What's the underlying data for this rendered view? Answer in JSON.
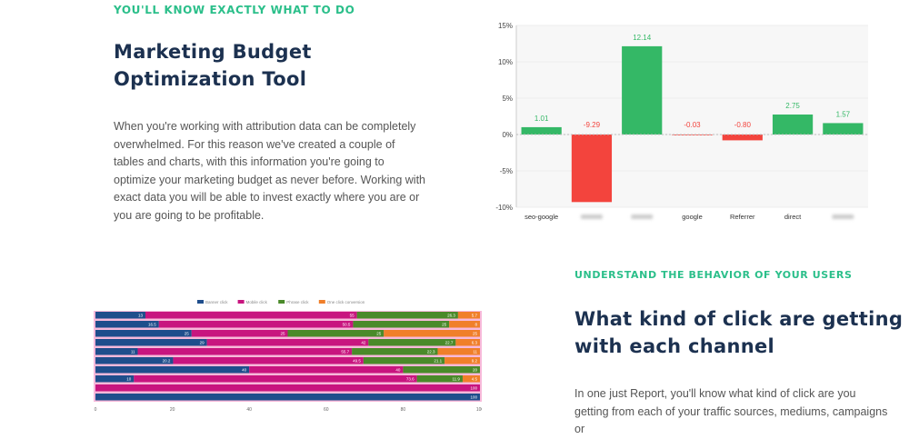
{
  "section1": {
    "eyebrow": "YOU'LL KNOW EXACTLY WHAT TO DO",
    "title_line1": "Marketing Budget",
    "title_line2": "Optimization Tool",
    "paragraph": "When you're working with attribution data can be completely overwhelmed. For this reason we've created a couple of tables and charts, with this information you're going to optimize your marketing budget as never before. Working with exact data you will be able to invest exactly where you are or you are going to be profitable."
  },
  "section2": {
    "eyebrow": "UNDERSTAND THE BEHAVIOR OF YOUR USERS",
    "title_line1": "What kind of click are getting",
    "title_line2": "with each channel",
    "paragraph": "In one just Report, you'll know what kind of click are you getting from each of your traffic sources, mediums, campaigns or"
  },
  "chart_data": [
    {
      "type": "bar",
      "categories": [
        "seo-google",
        "",
        "",
        "google",
        "Referrer",
        "direct",
        ""
      ],
      "values": [
        1.01,
        -9.29,
        12.14,
        -0.03,
        -0.8,
        2.75,
        1.57
      ],
      "data_labels": [
        "1.01",
        "-9.29",
        "12.14",
        "-0.03",
        "-0.80",
        "2.75",
        "1.57"
      ],
      "yticks": [
        "15%",
        "10%",
        "5%",
        "0%",
        "-5%",
        "-10%"
      ],
      "ylim": [
        -10,
        15
      ],
      "grid": true,
      "colors": {
        "positive": "#34b866",
        "negative": "#f3443d"
      }
    },
    {
      "type": "bar",
      "orientation": "horizontal-stacked-100",
      "series": [
        {
          "name": "Banner click",
          "color": "#1f4e8c",
          "values": [
            13,
            16.5,
            25,
            29,
            11,
            20.2,
            40,
            10,
            0,
            100
          ]
        },
        {
          "name": "Mobile click",
          "color": "#c8157f",
          "values": [
            55,
            50.5,
            25,
            42,
            55.7,
            49.5,
            40,
            73.6,
            100,
            0
          ]
        },
        {
          "name": "Phrase click",
          "color": "#4a8a2a",
          "values": [
            26.3,
            25,
            25,
            22.7,
            22.3,
            21.1,
            20,
            11.9,
            0,
            0
          ]
        },
        {
          "name": "One click conversion",
          "color": "#f07f2a",
          "values": [
            5.7,
            8,
            25,
            6.3,
            11,
            9.2,
            0,
            4.5,
            0,
            0
          ]
        }
      ],
      "xticks": [
        "0",
        "20",
        "40",
        "60",
        "80",
        "100"
      ],
      "xlim": [
        0,
        100
      ],
      "legend": "top"
    }
  ]
}
